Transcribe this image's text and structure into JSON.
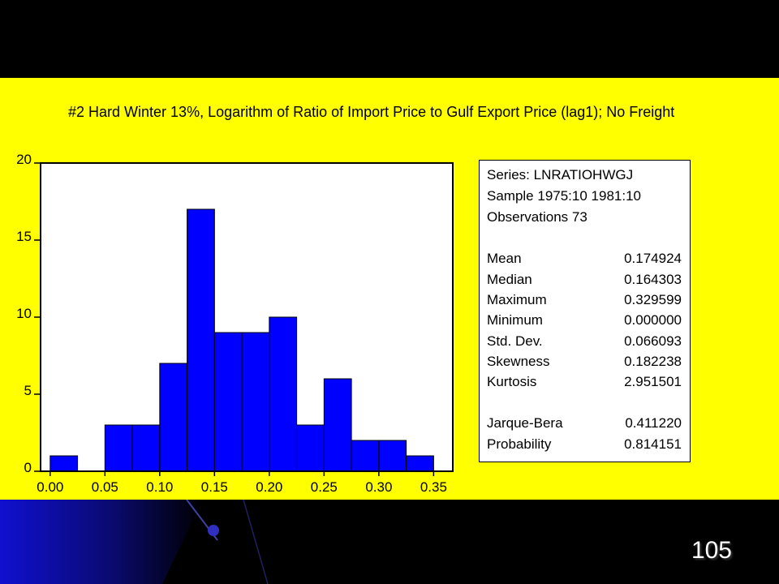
{
  "chart_data": {
    "type": "bar",
    "title": "#2 Hard Winter 13%, Logarithm of Ratio of Import Price to Gulf Export Price (lag1); No Freight",
    "xlabel": "",
    "ylabel": "",
    "bin_edges": [
      0.0,
      0.025,
      0.05,
      0.075,
      0.1,
      0.125,
      0.15,
      0.175,
      0.2,
      0.225,
      0.25,
      0.275,
      0.3,
      0.325,
      0.35
    ],
    "values": [
      1,
      0,
      3,
      3,
      7,
      17,
      9,
      9,
      10,
      3,
      6,
      2,
      2,
      1
    ],
    "xlim": [
      -0.00875,
      0.3675
    ],
    "ylim": [
      0,
      20
    ],
    "x_ticks": [
      "0.00",
      "0.05",
      "0.10",
      "0.15",
      "0.20",
      "0.25",
      "0.30",
      "0.35"
    ],
    "y_ticks": [
      "0",
      "5",
      "10",
      "15",
      "20"
    ],
    "bar_color": "#0000ff",
    "grid": false
  },
  "stats": {
    "series": "Series: LNRATIOHWGJ",
    "sample": "Sample 1975:10 1981:10",
    "observations": "Observations 73",
    "rows": [
      {
        "label": "Mean",
        "value": "0.174924"
      },
      {
        "label": "Median",
        "value": "0.164303"
      },
      {
        "label": "Maximum",
        "value": "0.329599"
      },
      {
        "label": "Minimum",
        "value": "0.000000"
      },
      {
        "label": "Std. Dev.",
        "value": "0.066093"
      },
      {
        "label": "Skewness",
        "value": "0.182238"
      },
      {
        "label": "Kurtosis",
        "value": "2.951501"
      },
      {
        "label": "Jarque-Bera",
        "value": "0.411220"
      },
      {
        "label": "Probability",
        "value": "0.814151"
      }
    ]
  },
  "slide": {
    "page_number": "105",
    "background_color": "#ffff00"
  }
}
